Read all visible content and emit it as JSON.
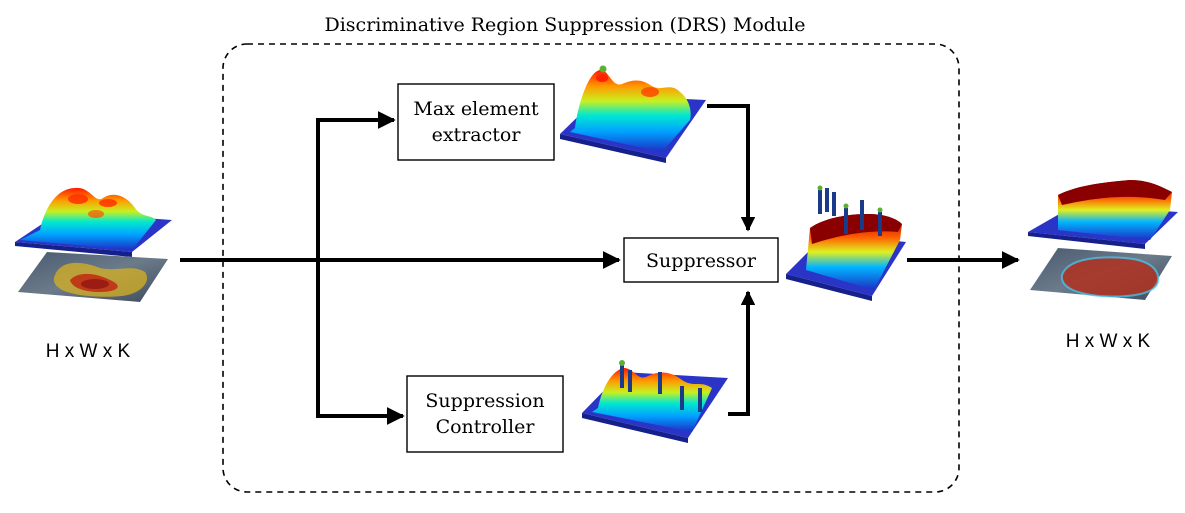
{
  "module": {
    "title": "Discriminative Region Suppression (DRS) Module"
  },
  "blocks": {
    "max_extractor": {
      "line1": "Max element",
      "line2": "extractor"
    },
    "suppressor": {
      "label": "Suppressor"
    },
    "controller": {
      "line1": "Suppression",
      "line2": "Controller"
    }
  },
  "input": {
    "dims": "H x W x K"
  },
  "output": {
    "dims": "H x W x K"
  },
  "colors": {
    "heat_base": "#2a35c8",
    "heat_peak": "#ff2a00",
    "suppressed_top": "#8a0000",
    "arrow": "#000000"
  }
}
